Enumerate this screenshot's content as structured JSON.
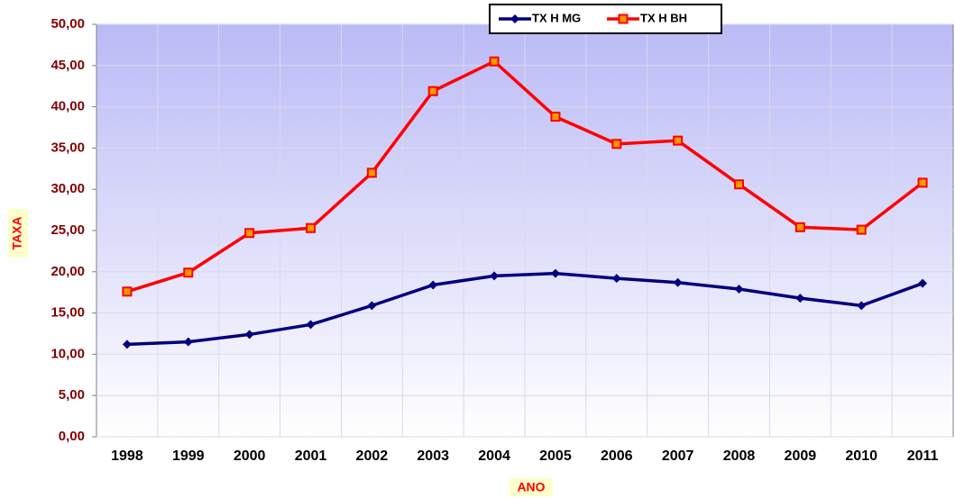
{
  "chart_data": {
    "type": "line",
    "x_label": "ANO",
    "y_label": "TAXA",
    "categories": [
      "1998",
      "1999",
      "2000",
      "2001",
      "2002",
      "2003",
      "2004",
      "2005",
      "2006",
      "2007",
      "2008",
      "2009",
      "2010",
      "2011"
    ],
    "series": [
      {
        "name": "TX H MG",
        "color": "#000080",
        "marker": "diamond",
        "values": [
          11.2,
          11.5,
          12.4,
          13.6,
          15.9,
          18.4,
          19.5,
          19.8,
          19.2,
          18.7,
          17.9,
          16.8,
          15.9,
          18.6
        ]
      },
      {
        "name": "TX H BH",
        "color": "#ff0000",
        "marker": "square",
        "values": [
          17.6,
          19.9,
          24.7,
          25.3,
          32.0,
          41.9,
          45.5,
          38.8,
          35.5,
          35.9,
          30.6,
          25.4,
          25.1,
          30.8
        ]
      }
    ],
    "ylim": [
      0,
      50
    ],
    "yticks": [
      {
        "value": 0,
        "label": "0,00"
      },
      {
        "value": 5,
        "label": "5,00"
      },
      {
        "value": 10,
        "label": "10,00"
      },
      {
        "value": 15,
        "label": "15,00"
      },
      {
        "value": 20,
        "label": "20,00"
      },
      {
        "value": 25,
        "label": "25,00"
      },
      {
        "value": 30,
        "label": "30,00"
      },
      {
        "value": 35,
        "label": "35,00"
      },
      {
        "value": 40,
        "label": "40,00"
      },
      {
        "value": 45,
        "label": "45,00"
      },
      {
        "value": 50,
        "label": "50,00"
      }
    ],
    "grid": true,
    "legend": "top"
  }
}
